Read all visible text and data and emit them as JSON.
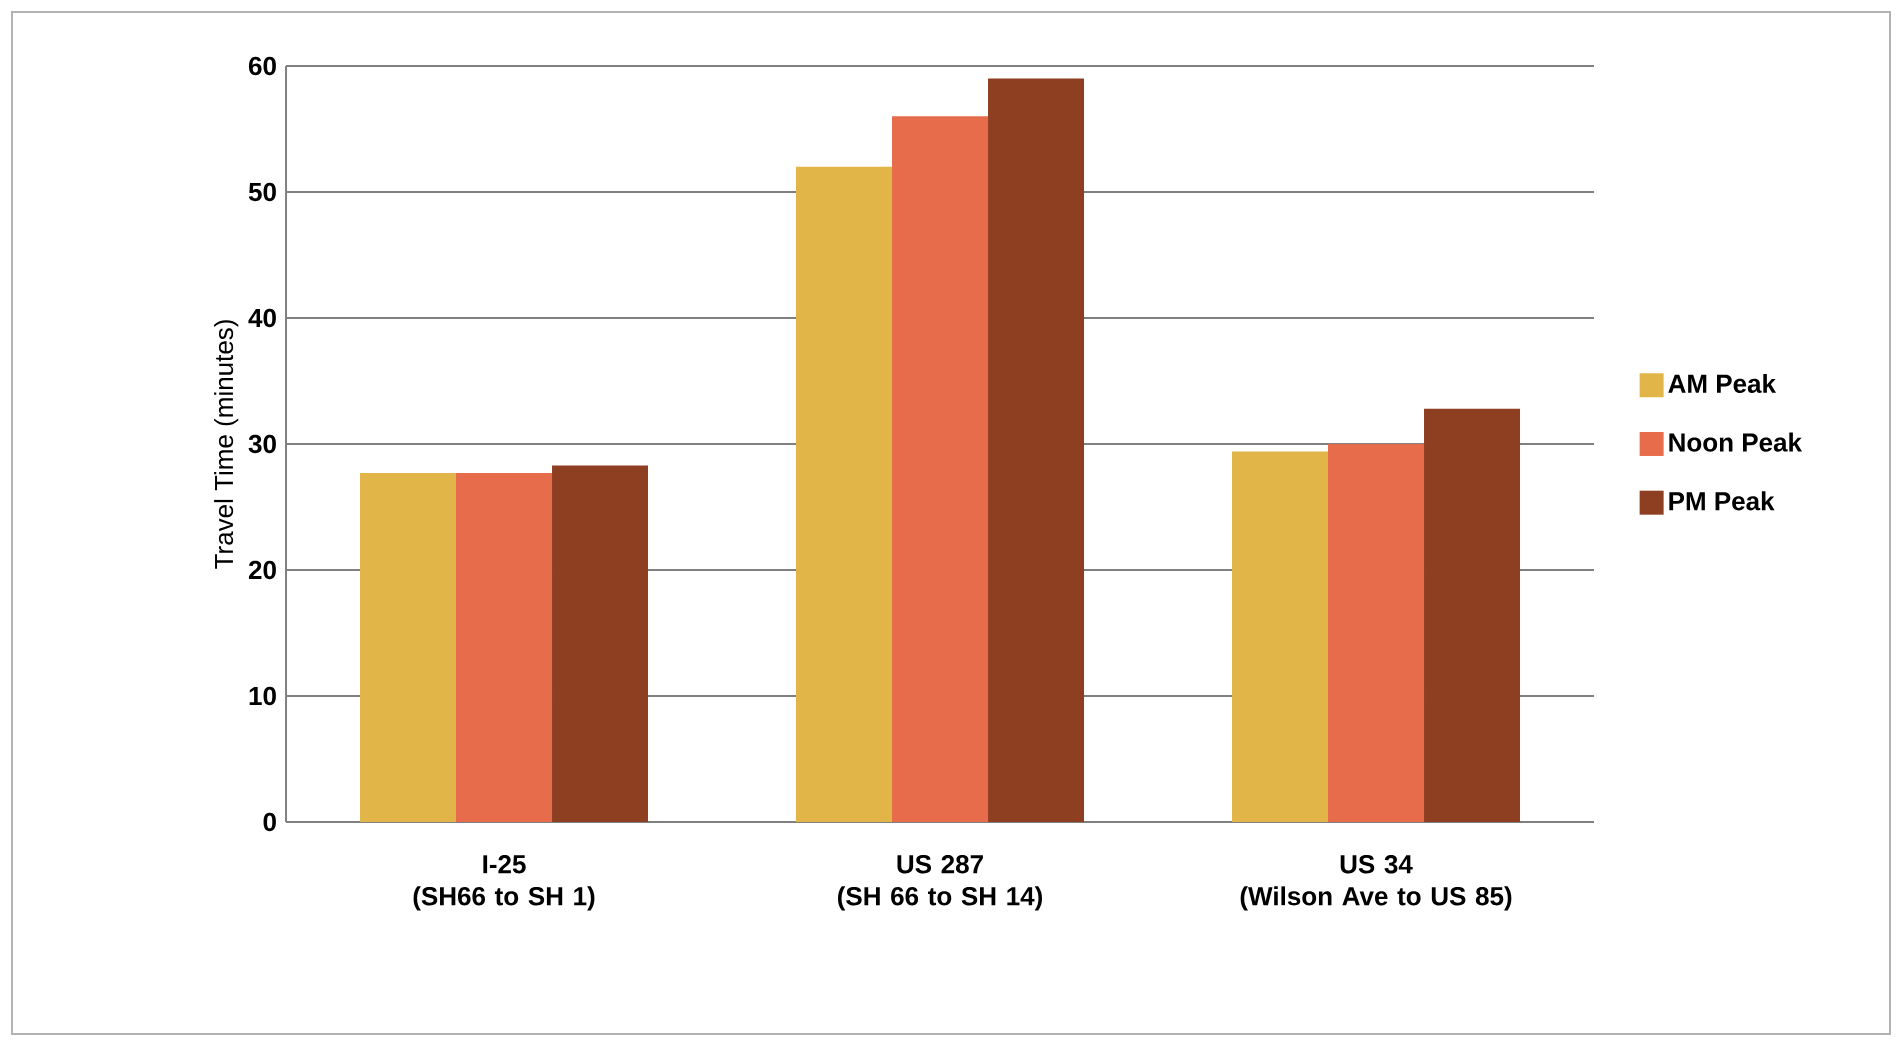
{
  "chart_data": {
    "type": "bar",
    "ylabel": "Travel Time (minutes)",
    "categories": [
      "I-25\n(SH66 to SH 1)",
      "US 287\n(SH 66 to SH 14)",
      "US 34\n(Wilson Ave to US 85)"
    ],
    "series": [
      {
        "name": "AM Peak",
        "color": "#e2b548",
        "values": [
          27.7,
          52,
          29.4
        ]
      },
      {
        "name": "Noon Peak",
        "color": "#e66c4c",
        "values": [
          27.7,
          56,
          30
        ]
      },
      {
        "name": "PM Peak",
        "color": "#8e3f21",
        "values": [
          28.3,
          59,
          32.8
        ]
      }
    ],
    "ylim": [
      0,
      60
    ],
    "yticks": [
      0,
      10,
      20,
      30,
      40,
      50,
      60
    ],
    "grid": "y",
    "legend": "right"
  }
}
